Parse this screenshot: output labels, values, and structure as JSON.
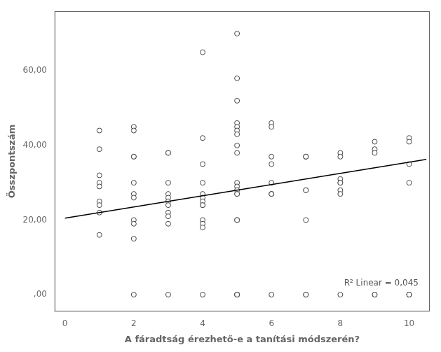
{
  "chart_data": {
    "type": "scatter",
    "xlabel": "A fáradtság érezhető-e a tanítási módszerén?",
    "ylabel": "Összpontszám",
    "annotation": "R² Linear = 0,045",
    "xlim": [
      -0.3,
      10.6
    ],
    "ylim": [
      -4.5,
      76
    ],
    "xticks": [
      0,
      2,
      4,
      6,
      8,
      10
    ],
    "yticks": [
      {
        "value": 0.0,
        "label": ",00"
      },
      {
        "value": 20.0,
        "label": "20,00"
      },
      {
        "value": 40.0,
        "label": "40,00"
      },
      {
        "value": 60.0,
        "label": "60,00"
      }
    ],
    "grid": false,
    "series": [
      {
        "type": "scatter",
        "color": "#444444",
        "marker": "hollow",
        "x": [
          1,
          1,
          1,
          1,
          1,
          1,
          1,
          1,
          1,
          2,
          2,
          2,
          2,
          2,
          2,
          2,
          2,
          2,
          2,
          2,
          3,
          3,
          3,
          3,
          3,
          3,
          3,
          3,
          3,
          3,
          3,
          4,
          4,
          4,
          4,
          4,
          4,
          4,
          4,
          4,
          4,
          4,
          4,
          4,
          5,
          5,
          5,
          5,
          5,
          5,
          5,
          5,
          5,
          5,
          5,
          5,
          5,
          5,
          5,
          5,
          5,
          5,
          5,
          5,
          6,
          6,
          6,
          6,
          6,
          6,
          6,
          6,
          6,
          7,
          7,
          7,
          7,
          7,
          7,
          7,
          7,
          8,
          8,
          8,
          8,
          8,
          8,
          8,
          8,
          9,
          9,
          9,
          9,
          9,
          10,
          10,
          10,
          10,
          10,
          10,
          10
        ],
        "values": [
          44,
          39,
          32,
          30,
          29,
          25,
          24,
          22,
          16,
          45,
          44,
          37,
          37,
          30,
          27,
          26,
          20,
          19,
          15,
          0,
          38,
          38,
          30,
          27,
          26,
          25,
          24,
          22,
          21,
          19,
          0,
          65,
          42,
          35,
          30,
          27,
          26,
          25,
          24,
          24,
          20,
          19,
          18,
          0,
          70,
          58,
          52,
          46,
          45,
          44,
          43,
          40,
          38,
          30,
          29,
          28,
          27,
          27,
          20,
          20,
          0,
          0,
          0,
          0,
          46,
          45,
          37,
          35,
          30,
          27,
          27,
          27,
          0,
          37,
          37,
          37,
          28,
          28,
          20,
          0,
          0,
          38,
          37,
          31,
          30,
          30,
          28,
          27,
          0,
          41,
          39,
          38,
          0,
          0,
          42,
          41,
          35,
          30,
          0,
          0,
          0
        ]
      },
      {
        "type": "line",
        "color": "black",
        "line_style": "solid",
        "x": [
          0,
          10.5
        ],
        "values": [
          20.5,
          36.25
        ]
      }
    ]
  }
}
